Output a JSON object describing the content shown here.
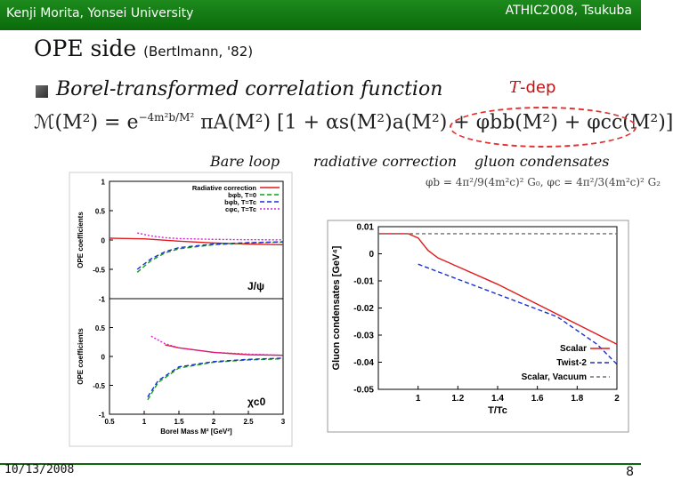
{
  "header": {
    "left": "Kenji Morita, Yonsei University",
    "right": "ATHIC2008, Tsukuba"
  },
  "title": {
    "main": "OPE side",
    "sub": "(Bertlmann, '82)"
  },
  "bullet": {
    "text": "Borel-transformed correlation function"
  },
  "tdep": {
    "symbol": "T",
    "text": "-dep"
  },
  "formula": {
    "lhs": "ℳ(M²) = e",
    "exp": "−4m²b/M²",
    "rest": " πA(M²) [1 + αs(M²)a(M²) + φbb(M²) + φcc(M²)]"
  },
  "labels": {
    "bare": "Bare loop",
    "rad": "radiative correction",
    "gluon": "gluon condensates"
  },
  "small_formula": "φb = 4π²/9(4m²c)² G₀,   φc = 4π²/3(4m²c)² G₂",
  "footer": {
    "date": "10/13/2008",
    "page": "8"
  },
  "colors": {
    "red": "#e01b1b",
    "green": "#10a010",
    "blue": "#1a2fd0",
    "magenta": "#d020d0",
    "header": "#0f7a0f"
  },
  "chart_data": [
    {
      "type": "line",
      "ylabel": "OPE coefficients",
      "xlim": [
        0.5,
        3
      ],
      "ylim": [
        -1,
        1
      ],
      "yticks": [
        "1",
        "0.5",
        "0",
        "-0.5",
        "-1"
      ],
      "annotation": "J/ψ",
      "legend": [
        "Radiative correction",
        "bφb, T=0",
        "bφb, T=Tc",
        "cφc, T=Tc"
      ],
      "series": [
        {
          "name": "Radiative correction",
          "color": "#e01b1b",
          "points": [
            [
              0.5,
              0.03
            ],
            [
              1,
              0.02
            ],
            [
              1.5,
              -0.02
            ],
            [
              2,
              -0.05
            ],
            [
              2.5,
              -0.07
            ],
            [
              3,
              -0.08
            ]
          ]
        },
        {
          "name": "bφb, T=0",
          "color": "#10a010",
          "points": [
            [
              0.9,
              -0.55
            ],
            [
              1.1,
              -0.35
            ],
            [
              1.3,
              -0.22
            ],
            [
              1.5,
              -0.15
            ],
            [
              2,
              -0.08
            ],
            [
              2.5,
              -0.05
            ],
            [
              3,
              -0.035
            ]
          ]
        },
        {
          "name": "bφb, T=Tc",
          "color": "#1a2fd0",
          "points": [
            [
              0.9,
              -0.5
            ],
            [
              1.1,
              -0.32
            ],
            [
              1.3,
              -0.2
            ],
            [
              1.5,
              -0.13
            ],
            [
              2,
              -0.07
            ],
            [
              2.5,
              -0.045
            ],
            [
              3,
              -0.03
            ]
          ]
        },
        {
          "name": "cφc, T=Tc",
          "color": "#d020d0",
          "points": [
            [
              0.9,
              0.12
            ],
            [
              1.1,
              0.07
            ],
            [
              1.3,
              0.04
            ],
            [
              1.5,
              0.025
            ],
            [
              2,
              0.01
            ],
            [
              2.5,
              0.005
            ],
            [
              3,
              0.003
            ]
          ]
        }
      ]
    },
    {
      "type": "line",
      "ylabel": "OPE coefficients",
      "xlabel": "Borel Mass M² [GeV²]",
      "xlim": [
        0.5,
        3
      ],
      "ylim": [
        -1,
        1
      ],
      "xticks": [
        "0.5",
        "1",
        "1.5",
        "2",
        "2.5",
        "3"
      ],
      "yticks": [
        "1",
        "0.5",
        "0",
        "-0.5",
        "-1"
      ],
      "annotation": "χc0",
      "series": [
        {
          "name": "Radiative correction",
          "color": "#e01b1b",
          "points": [
            [
              1.3,
              0.2
            ],
            [
              1.5,
              0.15
            ],
            [
              2,
              0.07
            ],
            [
              2.5,
              0.03
            ],
            [
              3,
              0.02
            ]
          ]
        },
        {
          "name": "bφb, T=0",
          "color": "#10a010",
          "points": [
            [
              1.05,
              -0.75
            ],
            [
              1.2,
              -0.45
            ],
            [
              1.5,
              -0.2
            ],
            [
              2,
              -0.1
            ],
            [
              2.5,
              -0.06
            ],
            [
              3,
              -0.04
            ]
          ]
        },
        {
          "name": "bφb, T=Tc",
          "color": "#1a2fd0",
          "points": [
            [
              1.05,
              -0.7
            ],
            [
              1.2,
              -0.42
            ],
            [
              1.5,
              -0.18
            ],
            [
              2,
              -0.09
            ],
            [
              2.5,
              -0.05
            ],
            [
              3,
              -0.03
            ]
          ]
        },
        {
          "name": "cφc, T=Tc",
          "color": "#d020d0",
          "points": [
            [
              1.1,
              0.35
            ],
            [
              1.3,
              0.22
            ],
            [
              1.5,
              0.15
            ],
            [
              2,
              0.07
            ],
            [
              2.5,
              0.04
            ],
            [
              3,
              0.02
            ]
          ]
        }
      ]
    },
    {
      "type": "line",
      "ylabel": "Gluon condensates [GeV⁴]",
      "xlabel": "T/Tc",
      "xlim": [
        0.8,
        2
      ],
      "ylim": [
        -0.05,
        0.015
      ],
      "xticks": [
        "1",
        "1.2",
        "1.4",
        "1.6",
        "1.8",
        "2"
      ],
      "yticks": [
        "0.01",
        "0",
        "-0.01",
        "-0.02",
        "-0.03",
        "-0.04",
        "-0.05"
      ],
      "legend": [
        "Scalar",
        "Twist-2",
        "Scalar, Vacuum"
      ],
      "series": [
        {
          "name": "Scalar",
          "color": "#e01b1b",
          "points": [
            [
              0.8,
              0.0122
            ],
            [
              0.95,
              0.0122
            ],
            [
              1.0,
              0.0105
            ],
            [
              1.05,
              0.0055
            ],
            [
              1.1,
              0.0025
            ],
            [
              1.2,
              -0.001
            ],
            [
              1.4,
              -0.008
            ],
            [
              1.6,
              -0.016
            ],
            [
              1.8,
              -0.024
            ],
            [
              2.0,
              -0.032
            ]
          ]
        },
        {
          "name": "Twist-2",
          "color": "#1a2fd0",
          "points": [
            [
              1.0,
              0.0
            ],
            [
              1.1,
              -0.003
            ],
            [
              1.3,
              -0.009
            ],
            [
              1.5,
              -0.015
            ],
            [
              1.7,
              -0.021
            ],
            [
              1.9,
              -0.032
            ],
            [
              2.0,
              -0.04
            ]
          ]
        },
        {
          "name": "Scalar, Vacuum",
          "color": "#707070",
          "points": [
            [
              0.8,
              0.0122
            ],
            [
              2.0,
              0.0122
            ]
          ]
        }
      ]
    }
  ]
}
